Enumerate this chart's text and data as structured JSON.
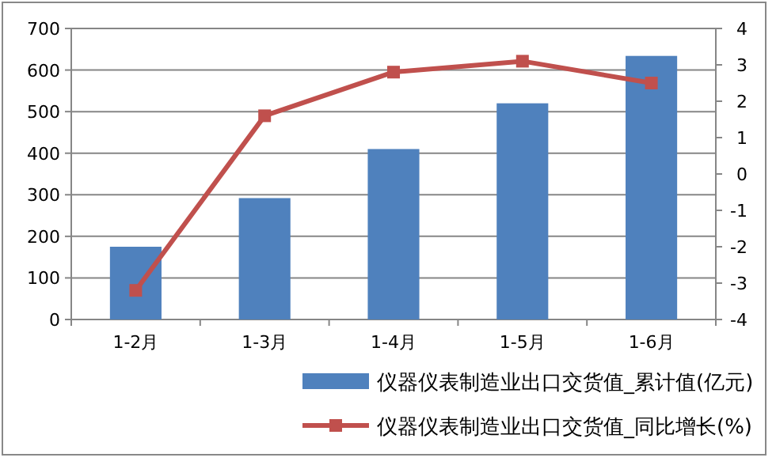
{
  "chart_data": {
    "type": "bar",
    "categories": [
      "1-2月",
      "1-3月",
      "1-4月",
      "1-5月",
      "1-6月"
    ],
    "series": [
      {
        "name": "仪器仪表制造业出口交货值_累计值(亿元)",
        "color": "#4f81bd",
        "values": [
          175,
          292,
          410,
          520,
          634
        ]
      },
      {
        "name": "仪器仪表制造业出口交货值_同比增长(%)",
        "type": "line",
        "axis": "y2",
        "color": "#c0504d",
        "marker": "square",
        "values": [
          -3.2,
          1.6,
          2.8,
          3.1,
          2.5
        ]
      }
    ],
    "ylim": [
      0,
      700
    ],
    "yticks": [
      0,
      100,
      200,
      300,
      400,
      500,
      600,
      700
    ],
    "y2lim": [
      -4,
      4
    ],
    "y2ticks": [
      -4,
      -3,
      -2,
      -1,
      0,
      1,
      2,
      3,
      4
    ],
    "grid": "y",
    "legend": "bottom"
  }
}
